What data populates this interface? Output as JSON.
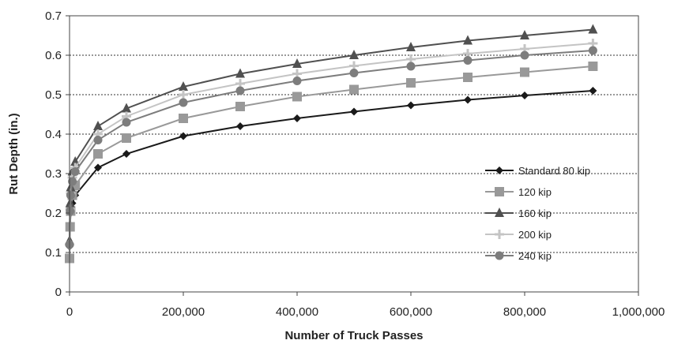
{
  "chart_data": {
    "type": "line",
    "xlabel": "Number of Truck Passes",
    "ylabel": "Rut Depth (in.)",
    "xlim": [
      0,
      1000000
    ],
    "ylim": [
      0,
      0.7
    ],
    "x_ticks": [
      0,
      200000,
      400000,
      600000,
      800000,
      1000000
    ],
    "x_tick_labels": [
      "0",
      "200,000",
      "400,000",
      "600,000",
      "800,000",
      "1,000,000"
    ],
    "y_ticks": [
      0,
      0.1,
      0.2,
      0.3,
      0.4,
      0.5,
      0.6,
      0.7
    ],
    "y_tick_labels": [
      "0",
      "0.1",
      "0.2",
      "0.3",
      "0.4",
      "0.5",
      "0.6",
      "0.7"
    ],
    "grid": "horizontal dotted",
    "legend_position": "right",
    "x": [
      0,
      1000,
      2000,
      5000,
      10000,
      50000,
      100000,
      200000,
      300000,
      400000,
      500000,
      600000,
      700000,
      800000,
      920000
    ],
    "series": [
      {
        "name": "Standard 80 kip",
        "color": "#1a1a1a",
        "marker": "diamond",
        "values": [
          0.115,
          0.17,
          0.2,
          0.225,
          0.245,
          0.315,
          0.35,
          0.395,
          0.42,
          0.44,
          0.457,
          0.473,
          0.487,
          0.498,
          0.51
        ]
      },
      {
        "name": "120 kip",
        "color": "#999999",
        "marker": "square",
        "values": [
          0.085,
          0.165,
          0.205,
          0.245,
          0.27,
          0.35,
          0.39,
          0.44,
          0.47,
          0.495,
          0.513,
          0.53,
          0.544,
          0.557,
          0.572
        ]
      },
      {
        "name": "160 kip",
        "color": "#505050",
        "marker": "triangle",
        "values": [
          0.13,
          0.225,
          0.265,
          0.305,
          0.33,
          0.42,
          0.465,
          0.52,
          0.553,
          0.578,
          0.6,
          0.62,
          0.637,
          0.65,
          0.665
        ]
      },
      {
        "name": "200 kip",
        "color": "#c4c4c4",
        "marker": "cross",
        "values": [
          0.12,
          0.21,
          0.25,
          0.29,
          0.315,
          0.4,
          0.445,
          0.5,
          0.528,
          0.553,
          0.573,
          0.59,
          0.604,
          0.616,
          0.63
        ]
      },
      {
        "name": "240 kip",
        "color": "#7d7d7d",
        "marker": "circle",
        "values": [
          0.12,
          0.205,
          0.245,
          0.28,
          0.305,
          0.385,
          0.43,
          0.48,
          0.51,
          0.535,
          0.555,
          0.572,
          0.587,
          0.6,
          0.612
        ]
      }
    ]
  }
}
